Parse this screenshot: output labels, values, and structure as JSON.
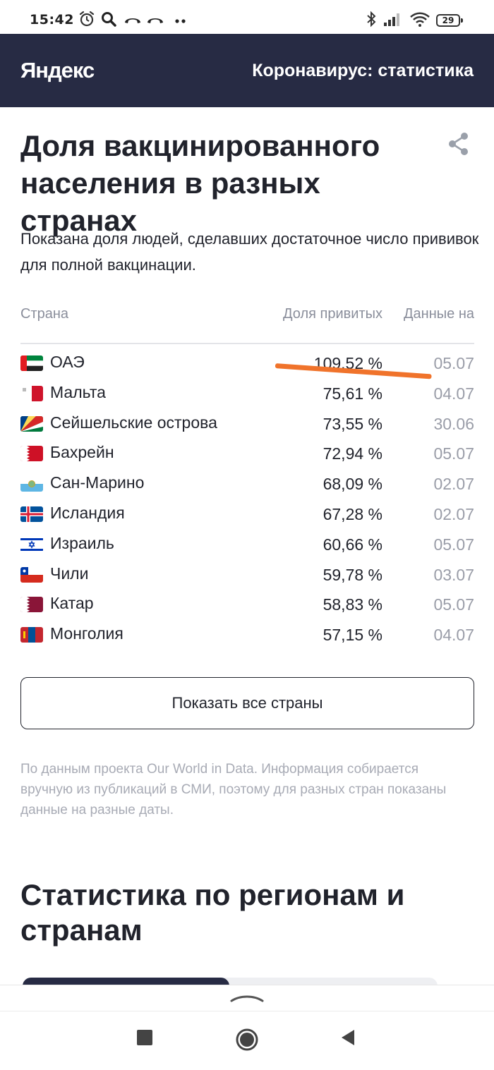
{
  "status_bar": {
    "time": "15:42",
    "battery": "29"
  },
  "header": {
    "logo": "Яндекс",
    "title": "Коронавирус: статистика"
  },
  "vaccination": {
    "title": "Доля вакцинированного населения в разных странах",
    "intro": "Показана доля людей, сделавших достаточное число прививок для полной вакцинации.",
    "columns": {
      "country": "Страна",
      "share": "Доля привитых",
      "date": "Данные на"
    },
    "rows": [
      {
        "country": "ОАЭ",
        "share": "109,52 %",
        "date": "05.07",
        "flag": "flag-uae"
      },
      {
        "country": "Мальта",
        "share": "75,61 %",
        "date": "04.07",
        "flag": "flag-malta"
      },
      {
        "country": "Сейшельские острова",
        "share": "73,55 %",
        "date": "30.06",
        "flag": "flag-seychelles"
      },
      {
        "country": "Бахрейн",
        "share": "72,94 %",
        "date": "05.07",
        "flag": "flag-bahrain"
      },
      {
        "country": "Сан-Марино",
        "share": "68,09 %",
        "date": "02.07",
        "flag": "flag-san-marino"
      },
      {
        "country": "Исландия",
        "share": "67,28 %",
        "date": "02.07",
        "flag": "flag-iceland"
      },
      {
        "country": "Израиль",
        "share": "60,66 %",
        "date": "05.07",
        "flag": "flag-israel"
      },
      {
        "country": "Чили",
        "share": "59,78 %",
        "date": "03.07",
        "flag": "flag-chile"
      },
      {
        "country": "Катар",
        "share": "58,83 %",
        "date": "05.07",
        "flag": "flag-qatar"
      },
      {
        "country": "Монголия",
        "share": "57,15 %",
        "date": "04.07",
        "flag": "flag-mongolia"
      }
    ],
    "show_all_label": "Показать все страны",
    "source_note": "По данным проекта Our World in Data. Информация собирается вручную из публикаций в СМИ, поэтому для разных стран показаны данные на разные даты."
  },
  "regions": {
    "title": "Статистика по регионам и странам"
  },
  "colors": {
    "header_bg": "#272b44",
    "annotation": "#f0732b",
    "muted": "#9a9da8"
  },
  "icons": [
    "alarm-icon",
    "search-icon",
    "missed-call-icon",
    "bluetooth-icon",
    "signal-icon",
    "wifi-icon",
    "battery-icon",
    "share-icon",
    "chevron-up-icon",
    "nav-recents-icon",
    "nav-home-icon",
    "nav-back-icon"
  ]
}
